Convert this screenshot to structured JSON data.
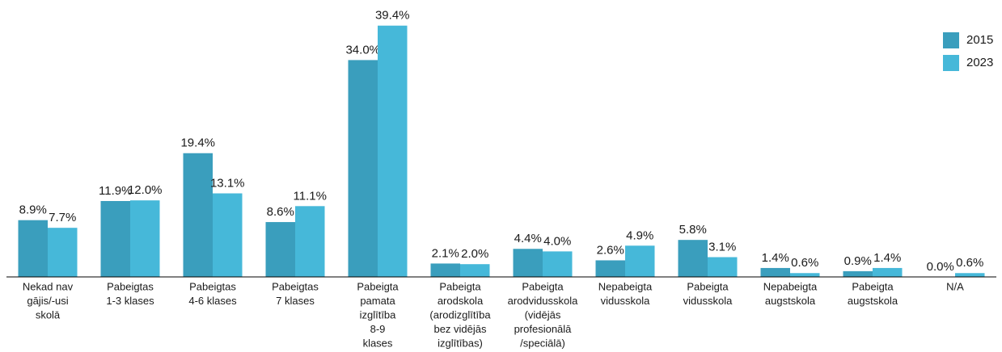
{
  "chart_data": {
    "type": "bar",
    "categories": [
      [
        "Nekad nav",
        "gājis/-usi",
        "skolā"
      ],
      [
        "Pabeigtas",
        "1-3 klases"
      ],
      [
        "Pabeigtas",
        "4-6 klases"
      ],
      [
        "Pabeigtas",
        "7 klases"
      ],
      [
        "Pabeigta",
        "pamata",
        "izglītība",
        "8-9",
        "klases"
      ],
      [
        "Pabeigta",
        "arodskola",
        "(arodizglītība",
        "bez vidējās",
        "izglītības)"
      ],
      [
        "Pabeigta",
        "arodvidusskola",
        "(vidējās",
        "profesionālā",
        "/speciālā)"
      ],
      [
        "Nepabeigta",
        "vidusskola"
      ],
      [
        "Pabeigta",
        "vidusskola"
      ],
      [
        "Nepabeigta",
        "augstskola"
      ],
      [
        "Pabeigta",
        "augstskola"
      ],
      [
        "N/A"
      ]
    ],
    "series": [
      {
        "name": "2015",
        "color": "#3a9ebd",
        "values": [
          8.9,
          11.9,
          19.4,
          8.6,
          34.0,
          2.1,
          4.4,
          2.6,
          5.8,
          1.4,
          0.9,
          0.0
        ],
        "value_labels": [
          "8.9%",
          "11.9%",
          "19.4%",
          "8.6%",
          "34.0%",
          "2.1%",
          "4.4%",
          "2.6%",
          "5.8%",
          "1.4%",
          "0.9%",
          "0.0%"
        ]
      },
      {
        "name": "2023",
        "color": "#46b8d9",
        "values": [
          7.7,
          12.0,
          13.1,
          11.1,
          39.4,
          2.0,
          4.0,
          4.9,
          3.1,
          0.6,
          1.4,
          0.6
        ],
        "value_labels": [
          "7.7%",
          "12.0%",
          "13.1%",
          "11.1%",
          "39.4%",
          "2.0%",
          "4.0%",
          "4.9%",
          "3.1%",
          "0.6%",
          "1.4%",
          "0.6%"
        ]
      }
    ],
    "ylim": [
      0,
      40
    ],
    "legend": "top-right"
  }
}
